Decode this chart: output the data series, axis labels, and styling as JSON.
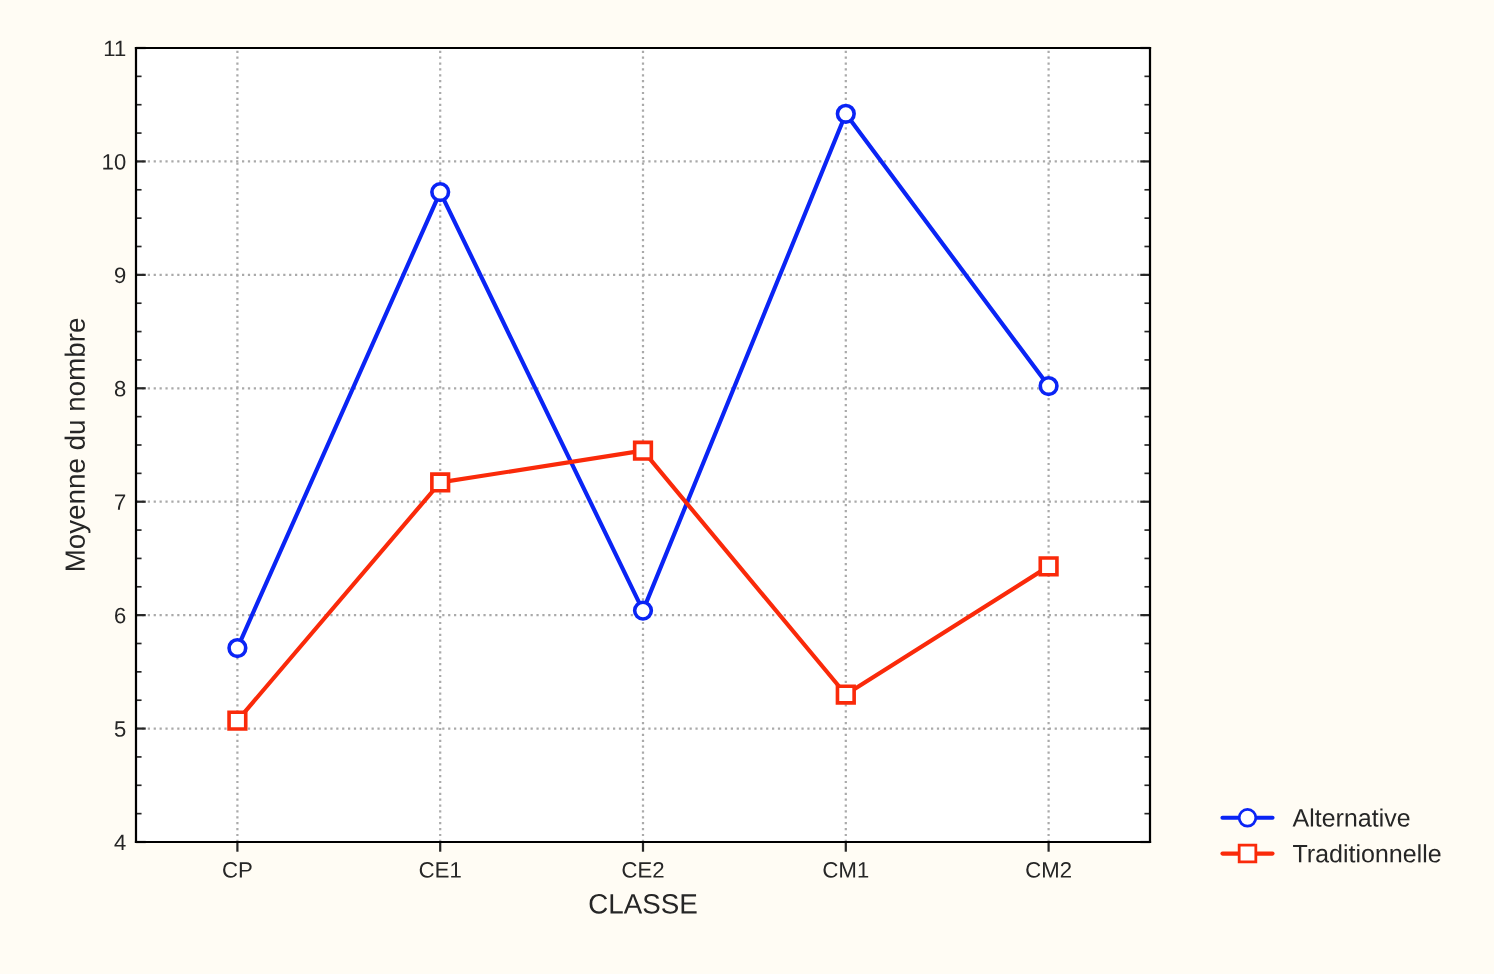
{
  "chart_data": {
    "type": "line",
    "xlabel": "CLASSE",
    "ylabel": "Moyenne du nombre",
    "categories": [
      "CP",
      "CE1",
      "CE2",
      "CM1",
      "CM2"
    ],
    "series": [
      {
        "name": "Alternative",
        "color": "#0a24f5",
        "values": [
          5.71,
          9.73,
          6.04,
          10.42,
          8.02
        ],
        "marker": "circle"
      },
      {
        "name": "Traditionnelle",
        "color": "#fa2a0a",
        "values": [
          5.07,
          7.17,
          7.45,
          5.3,
          6.43
        ],
        "marker": "square"
      }
    ],
    "ylim": [
      4,
      11
    ],
    "yticks": [
      4,
      5,
      6,
      7,
      8,
      9,
      10,
      11
    ],
    "grid": true,
    "legend": "bottom right",
    "line_style": "solid"
  }
}
